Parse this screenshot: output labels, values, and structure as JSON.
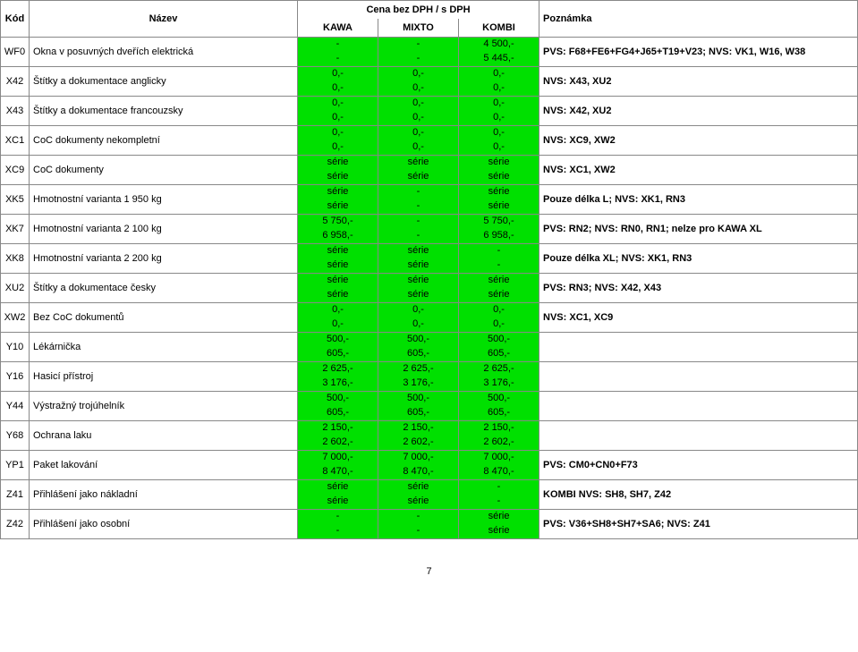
{
  "header": {
    "kod": "Kód",
    "nazev": "Název",
    "cena_group": "Cena bez DPH / s DPH",
    "kawa": "KAWA",
    "mixto": "MIXTO",
    "kombi": "KOMBI",
    "poznamka": "Poznámka"
  },
  "footer_page": "7",
  "rows": [
    {
      "kod": "WF0",
      "nazev": "Okna v posuvných dveřích elektrická",
      "kawa": [
        "-",
        "-"
      ],
      "mixto": [
        "-",
        "-"
      ],
      "kombi": [
        "4 500,-",
        "5 445,-"
      ],
      "pozn": "PVS: F68+FE6+FG4+J65+T19+V23; NVS: VK1, W16, W38"
    },
    {
      "kod": "X42",
      "nazev": "Štítky a dokumentace anglicky",
      "kawa": [
        "0,-",
        "0,-"
      ],
      "mixto": [
        "0,-",
        "0,-"
      ],
      "kombi": [
        "0,-",
        "0,-"
      ],
      "pozn": "NVS: X43, XU2"
    },
    {
      "kod": "X43",
      "nazev": "Štítky a dokumentace francouzsky",
      "kawa": [
        "0,-",
        "0,-"
      ],
      "mixto": [
        "0,-",
        "0,-"
      ],
      "kombi": [
        "0,-",
        "0,-"
      ],
      "pozn": "NVS: X42, XU2"
    },
    {
      "kod": "XC1",
      "nazev": "CoC dokumenty nekompletní",
      "kawa": [
        "0,-",
        "0,-"
      ],
      "mixto": [
        "0,-",
        "0,-"
      ],
      "kombi": [
        "0,-",
        "0,-"
      ],
      "pozn": "NVS: XC9, XW2"
    },
    {
      "kod": "XC9",
      "nazev": "CoC dokumenty",
      "kawa": [
        "série",
        "série"
      ],
      "mixto": [
        "série",
        "série"
      ],
      "kombi": [
        "série",
        "série"
      ],
      "pozn": "NVS: XC1, XW2"
    },
    {
      "kod": "XK5",
      "nazev": "Hmotnostní varianta 1 950 kg",
      "kawa": [
        "série",
        "série"
      ],
      "mixto": [
        "-",
        "-"
      ],
      "kombi": [
        "série",
        "série"
      ],
      "pozn": "Pouze délka L; NVS: XK1, RN3"
    },
    {
      "kod": "XK7",
      "nazev": "Hmotnostní varianta 2 100 kg",
      "kawa": [
        "5 750,-",
        "6 958,-"
      ],
      "mixto": [
        "-",
        "-"
      ],
      "kombi": [
        "5 750,-",
        "6 958,-"
      ],
      "pozn": "PVS: RN2; NVS: RN0, RN1; nelze pro KAWA XL"
    },
    {
      "kod": "XK8",
      "nazev": "Hmotnostní varianta 2 200 kg",
      "kawa": [
        "série",
        "série"
      ],
      "mixto": [
        "série",
        "série"
      ],
      "kombi": [
        "-",
        "-"
      ],
      "pozn": "Pouze délka XL; NVS: XK1, RN3"
    },
    {
      "kod": "XU2",
      "nazev": "Štítky a dokumentace česky",
      "kawa": [
        "série",
        "série"
      ],
      "mixto": [
        "série",
        "série"
      ],
      "kombi": [
        "série",
        "série"
      ],
      "pozn": "PVS: RN3; NVS: X42, X43"
    },
    {
      "kod": "XW2",
      "nazev": "Bez CoC dokumentů",
      "kawa": [
        "0,-",
        "0,-"
      ],
      "mixto": [
        "0,-",
        "0,-"
      ],
      "kombi": [
        "0,-",
        "0,-"
      ],
      "pozn": "NVS: XC1, XC9"
    },
    {
      "kod": "Y10",
      "nazev": "Lékárnička",
      "kawa": [
        "500,-",
        "605,-"
      ],
      "mixto": [
        "500,-",
        "605,-"
      ],
      "kombi": [
        "500,-",
        "605,-"
      ],
      "pozn": ""
    },
    {
      "kod": "Y16",
      "nazev": "Hasicí přístroj",
      "kawa": [
        "2 625,-",
        "3 176,-"
      ],
      "mixto": [
        "2 625,-",
        "3 176,-"
      ],
      "kombi": [
        "2 625,-",
        "3 176,-"
      ],
      "pozn": ""
    },
    {
      "kod": "Y44",
      "nazev": "Výstražný trojúhelník",
      "kawa": [
        "500,-",
        "605,-"
      ],
      "mixto": [
        "500,-",
        "605,-"
      ],
      "kombi": [
        "500,-",
        "605,-"
      ],
      "pozn": ""
    },
    {
      "kod": "Y68",
      "nazev": "Ochrana laku",
      "kawa": [
        "2 150,-",
        "2 602,-"
      ],
      "mixto": [
        "2 150,-",
        "2 602,-"
      ],
      "kombi": [
        "2 150,-",
        "2 602,-"
      ],
      "pozn": ""
    },
    {
      "kod": "YP1",
      "nazev": "Paket lakování",
      "kawa": [
        "7 000,-",
        "8 470,-"
      ],
      "mixto": [
        "7 000,-",
        "8 470,-"
      ],
      "kombi": [
        "7 000,-",
        "8 470,-"
      ],
      "pozn": "PVS: CM0+CN0+F73"
    },
    {
      "kod": "Z41",
      "nazev": "Přihlášení jako nákladní",
      "kawa": [
        "série",
        "série"
      ],
      "mixto": [
        "série",
        "série"
      ],
      "kombi": [
        "-",
        "-"
      ],
      "pozn": "KOMBI NVS: SH8, SH7, Z42"
    },
    {
      "kod": "Z42",
      "nazev": "Přihlášení jako osobní",
      "kawa": [
        "-",
        "-"
      ],
      "mixto": [
        "-",
        "-"
      ],
      "kombi": [
        "série",
        "série"
      ],
      "pozn": "PVS: V36+SH8+SH7+SA6; NVS: Z41"
    }
  ]
}
